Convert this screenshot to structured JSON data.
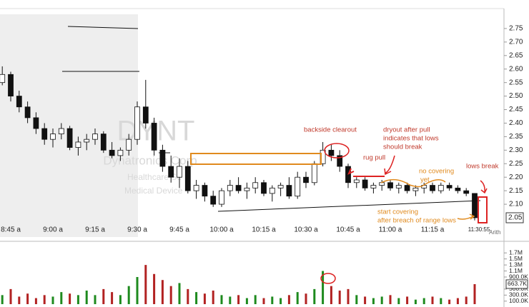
{
  "chart_data": {
    "type": "candlestick",
    "symbol": "DYNT",
    "company": "Dynatronics Corp",
    "sector": "Healthcare Se",
    "industry": "Medical Device",
    "categories": [
      null,
      "8:45 a",
      null,
      null,
      null,
      null,
      "9:00 a",
      null,
      null,
      null,
      null,
      "9:15 a",
      null,
      null,
      null,
      null,
      "9:30 a",
      null,
      null,
      null,
      null,
      "9:45 a",
      null,
      null,
      null,
      null,
      "10:00 a",
      null,
      null,
      null,
      null,
      "10:15 a",
      null,
      null,
      null,
      null,
      "10:30 a",
      null,
      null,
      null,
      null,
      "10:45 a",
      null,
      null,
      null,
      null,
      "11:00 a",
      null,
      null,
      null,
      null,
      "11:15 a",
      null,
      null,
      null,
      null,
      "11:30:55"
    ],
    "ohlc": [
      [
        2.55,
        2.61,
        2.54,
        2.58
      ],
      [
        2.58,
        2.59,
        2.48,
        2.5
      ],
      [
        2.5,
        2.52,
        2.44,
        2.46
      ],
      [
        2.46,
        2.48,
        2.4,
        2.42
      ],
      [
        2.42,
        2.44,
        2.36,
        2.38
      ],
      [
        2.38,
        2.4,
        2.32,
        2.34
      ],
      [
        2.34,
        2.38,
        2.31,
        2.36
      ],
      [
        2.36,
        2.4,
        2.34,
        2.38
      ],
      [
        2.38,
        2.39,
        2.3,
        2.31
      ],
      [
        2.31,
        2.35,
        2.28,
        2.33
      ],
      [
        2.33,
        2.36,
        2.3,
        2.34
      ],
      [
        2.34,
        2.38,
        2.32,
        2.36
      ],
      [
        2.36,
        2.37,
        2.29,
        2.3
      ],
      [
        2.3,
        2.33,
        2.27,
        2.28
      ],
      [
        2.28,
        2.31,
        2.26,
        2.3
      ],
      [
        2.3,
        2.36,
        2.28,
        2.34
      ],
      [
        2.34,
        2.48,
        2.32,
        2.46
      ],
      [
        2.46,
        2.56,
        2.38,
        2.4
      ],
      [
        2.4,
        2.42,
        2.28,
        2.3
      ],
      [
        2.3,
        2.32,
        2.22,
        2.24
      ],
      [
        2.24,
        2.28,
        2.18,
        2.2
      ],
      [
        2.2,
        2.27,
        2.16,
        2.24
      ],
      [
        2.24,
        2.26,
        2.14,
        2.15
      ],
      [
        2.15,
        2.19,
        2.12,
        2.17
      ],
      [
        2.17,
        2.18,
        2.11,
        2.13
      ],
      [
        2.13,
        2.15,
        2.09,
        2.1
      ],
      [
        2.1,
        2.16,
        2.09,
        2.15
      ],
      [
        2.15,
        2.19,
        2.13,
        2.17
      ],
      [
        2.17,
        2.2,
        2.14,
        2.15
      ],
      [
        2.15,
        2.18,
        2.12,
        2.16
      ],
      [
        2.16,
        2.2,
        2.14,
        2.18
      ],
      [
        2.18,
        2.19,
        2.13,
        2.14
      ],
      [
        2.14,
        2.17,
        2.11,
        2.16
      ],
      [
        2.16,
        2.18,
        2.13,
        2.17
      ],
      [
        2.17,
        2.2,
        2.12,
        2.13
      ],
      [
        2.13,
        2.22,
        2.12,
        2.2
      ],
      [
        2.2,
        2.22,
        2.16,
        2.18
      ],
      [
        2.18,
        2.26,
        2.17,
        2.25
      ],
      [
        2.25,
        2.33,
        2.24,
        2.3
      ],
      [
        2.3,
        2.32,
        2.26,
        2.28
      ],
      [
        2.28,
        2.3,
        2.22,
        2.24
      ],
      [
        2.24,
        2.25,
        2.16,
        2.18
      ],
      [
        2.18,
        2.2,
        2.16,
        2.19
      ],
      [
        2.19,
        2.2,
        2.15,
        2.16
      ],
      [
        2.16,
        2.18,
        2.14,
        2.17
      ],
      [
        2.17,
        2.19,
        2.15,
        2.18
      ],
      [
        2.18,
        2.19,
        2.15,
        2.16
      ],
      [
        2.16,
        2.18,
        2.14,
        2.17
      ],
      [
        2.17,
        2.18,
        2.14,
        2.15
      ],
      [
        2.15,
        2.17,
        2.13,
        2.16
      ],
      [
        2.16,
        2.18,
        2.14,
        2.17
      ],
      [
        2.17,
        2.18,
        2.14,
        2.15
      ],
      [
        2.15,
        2.18,
        2.14,
        2.17
      ],
      [
        2.17,
        2.18,
        2.15,
        2.16
      ],
      [
        2.16,
        2.17,
        2.14,
        2.15
      ],
      [
        2.15,
        2.16,
        2.13,
        2.14
      ],
      [
        2.14,
        2.14,
        2.04,
        2.05
      ]
    ],
    "up_color": "#ffffff",
    "down_color": "#111111",
    "ylim": [
      2.05,
      2.8
    ],
    "yticks": [
      2.75,
      {
        "value": 2.7,
        "label": "2.70"
      },
      2.65,
      {
        "value": 2.6,
        "label": "2.60"
      },
      2.55,
      {
        "value": 2.5,
        "label": "2.50"
      },
      2.45,
      {
        "value": 2.4,
        "label": "2.40"
      },
      2.35,
      {
        "value": 2.3,
        "label": "2.30"
      },
      2.25,
      {
        "value": 2.2,
        "label": "2.20"
      },
      2.15,
      {
        "value": 2.1,
        "label": "2.10"
      }
    ],
    "scale": "Arith",
    "volume": {
      "values": [
        300000,
        500000,
        250000,
        350000,
        200000,
        300000,
        250000,
        400000,
        350000,
        300000,
        450000,
        300000,
        500000,
        400000,
        300000,
        600000,
        900000,
        1300000,
        1000000,
        800000,
        600000,
        700000,
        500000,
        400000,
        350000,
        450000,
        300000,
        250000,
        300000,
        200000,
        300000,
        200000,
        250000,
        200000,
        300000,
        400000,
        350000,
        500000,
        1100000,
        600000,
        450000,
        500000,
        300000,
        250000,
        200000,
        250000,
        300000,
        200000,
        250000,
        150000,
        200000,
        250000,
        200000,
        150000,
        200000,
        250000,
        663700
      ],
      "value_labels": [
        null,
        null,
        null,
        null,
        null,
        null,
        null,
        null,
        null,
        null,
        null,
        null,
        null,
        null,
        null,
        null,
        null,
        null,
        null,
        null,
        null,
        null,
        null,
        null,
        null,
        null,
        null,
        null,
        null,
        null,
        null,
        null,
        null,
        null,
        null,
        null,
        null,
        null,
        null,
        null,
        null,
        null,
        null,
        null,
        null,
        null,
        null,
        null,
        null,
        null,
        null,
        null,
        null,
        null,
        null,
        null,
        "663.7K"
      ],
      "up_color": "#1e8a1e",
      "down_color": "#b22222",
      "ylim": [
        0,
        1800000
      ],
      "yticks": [
        {
          "value": 1700000,
          "label": "1.7M"
        },
        {
          "value": 1500000,
          "label": "1.5M"
        },
        {
          "value": 1300000,
          "label": "1.3M"
        },
        {
          "value": 1100000,
          "label": "1.1M"
        },
        {
          "value": 900000,
          "label": "900.0K"
        },
        {
          "value": 500000,
          "label": "500.0K"
        },
        {
          "value": 300000,
          "label": "300.0K"
        },
        {
          "value": 100000,
          "label": "100.0K"
        }
      ]
    },
    "annotations": {
      "backside": [
        "backside clearout"
      ],
      "dryout": [
        "dryout after pull",
        "indicates that lows",
        "should break"
      ],
      "rug": [
        "rug pull"
      ],
      "nocover": [
        "no covering",
        "yet"
      ],
      "lows": [
        "lows break"
      ],
      "start": [
        "start covering",
        "after breach of range lows"
      ]
    }
  }
}
